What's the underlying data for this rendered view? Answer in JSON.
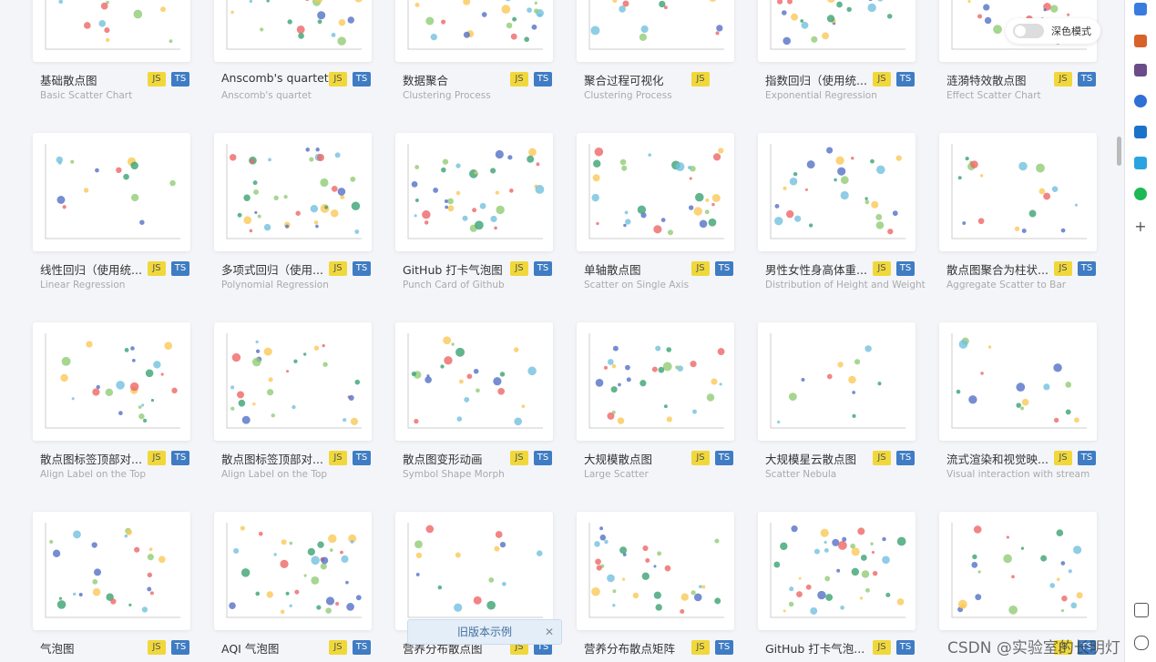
{
  "toggle_label": "深色模式",
  "banner": "旧版本示例",
  "watermark": "CSDN @实验室的长明灯",
  "cards": [
    {
      "title": "基础散点图",
      "subtitle": "Basic Scatter Chart",
      "badges": [
        "JS",
        "TS"
      ]
    },
    {
      "title": "Anscomb's quartet",
      "subtitle": "Anscomb's quartet",
      "badges": [
        "JS",
        "TS"
      ]
    },
    {
      "title": "数据聚合",
      "subtitle": "Clustering Process",
      "badges": [
        "JS",
        "TS"
      ]
    },
    {
      "title": "聚合过程可视化",
      "subtitle": "Clustering Process",
      "badges": [
        "JS"
      ]
    },
    {
      "title": "指数回归（使用统...",
      "subtitle": "Exponential Regression",
      "badges": [
        "JS",
        "TS"
      ]
    },
    {
      "title": "涟漪特效散点图",
      "subtitle": "Effect Scatter Chart",
      "badges": [
        "JS",
        "TS"
      ]
    },
    {
      "title": "线性回归（使用统...",
      "subtitle": "Linear Regression",
      "badges": [
        "JS",
        "TS"
      ]
    },
    {
      "title": "多项式回归（使用...",
      "subtitle": "Polynomial Regression",
      "badges": [
        "JS",
        "TS"
      ]
    },
    {
      "title": "GitHub 打卡气泡图",
      "subtitle": "Punch Card of Github",
      "badges": [
        "JS",
        "TS"
      ]
    },
    {
      "title": "单轴散点图",
      "subtitle": "Scatter on Single Axis",
      "badges": [
        "JS",
        "TS"
      ]
    },
    {
      "title": "男性女性身高体重...",
      "subtitle": "Distribution of Height and Weight",
      "badges": [
        "JS",
        "TS"
      ]
    },
    {
      "title": "散点图聚合为柱状...",
      "subtitle": "Aggregate Scatter to Bar",
      "badges": [
        "JS",
        "TS"
      ]
    },
    {
      "title": "散点图标签顶部对...",
      "subtitle": "Align Label on the Top",
      "badges": [
        "JS",
        "TS"
      ]
    },
    {
      "title": "散点图标签顶部对...",
      "subtitle": "Align Label on the Top",
      "badges": [
        "JS",
        "TS"
      ]
    },
    {
      "title": "散点图变形动画",
      "subtitle": "Symbol Shape Morph",
      "badges": [
        "JS",
        "TS"
      ]
    },
    {
      "title": "大规模散点图",
      "subtitle": "Large Scatter",
      "badges": [
        "JS",
        "TS"
      ]
    },
    {
      "title": "大规模星云散点图",
      "subtitle": "Scatter Nebula",
      "badges": [
        "JS",
        "TS"
      ]
    },
    {
      "title": "流式渲染和视觉映...",
      "subtitle": "Visual interaction with stream",
      "badges": [
        "JS",
        "TS"
      ]
    },
    {
      "title": "气泡图",
      "badges": [
        "JS",
        "TS"
      ]
    },
    {
      "title": "AQI 气泡图",
      "badges": [
        "JS",
        "TS"
      ]
    },
    {
      "title": "营养分布散点图",
      "badges": [
        "JS",
        "TS"
      ]
    },
    {
      "title": "营养分布散点矩阵",
      "badges": [
        "JS",
        "TS"
      ]
    },
    {
      "title": "GitHub 打卡气泡...",
      "badges": [
        "JS",
        "TS"
      ]
    },
    {
      "badges": [
        "JS",
        "TS"
      ]
    }
  ]
}
